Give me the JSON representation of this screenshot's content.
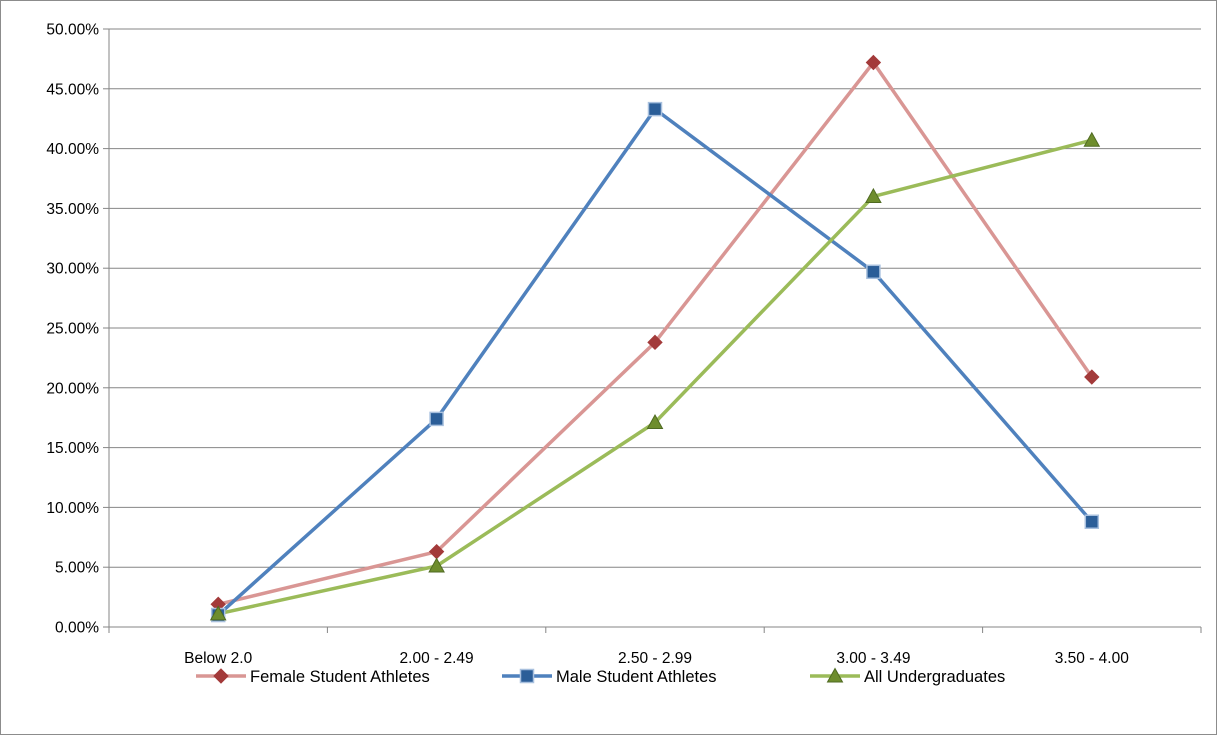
{
  "chart_data": {
    "type": "line",
    "categories": [
      "Below 2.0",
      "2.00 - 2.49",
      "2.50 - 2.99",
      "3.00 - 3.49",
      "3.50 - 4.00"
    ],
    "series": [
      {
        "name": "Female Student Athletes",
        "values": [
          1.9,
          6.3,
          23.8,
          47.2,
          20.9
        ],
        "color": "#d99694",
        "marker": "diamond",
        "marker_color": "#a33a3a"
      },
      {
        "name": "Male Student Athletes",
        "values": [
          1.0,
          17.4,
          43.3,
          29.7,
          8.8
        ],
        "color": "#4f81bd",
        "marker": "square",
        "marker_color": "#2b5e98"
      },
      {
        "name": "All Undergraduates",
        "values": [
          1.1,
          5.1,
          17.1,
          36.0,
          40.7
        ],
        "color": "#9bbb59",
        "marker": "triangle",
        "marker_color": "#6e8d2d"
      }
    ],
    "ylim": [
      0,
      50
    ],
    "y_ticks": [
      "0.00%",
      "5.00%",
      "10.00%",
      "15.00%",
      "20.00%",
      "25.00%",
      "30.00%",
      "35.00%",
      "40.00%",
      "45.00%",
      "50.00%"
    ],
    "title": "",
    "xlabel": "",
    "ylabel": "",
    "grid": "horizontal",
    "legend_position": "bottom"
  }
}
